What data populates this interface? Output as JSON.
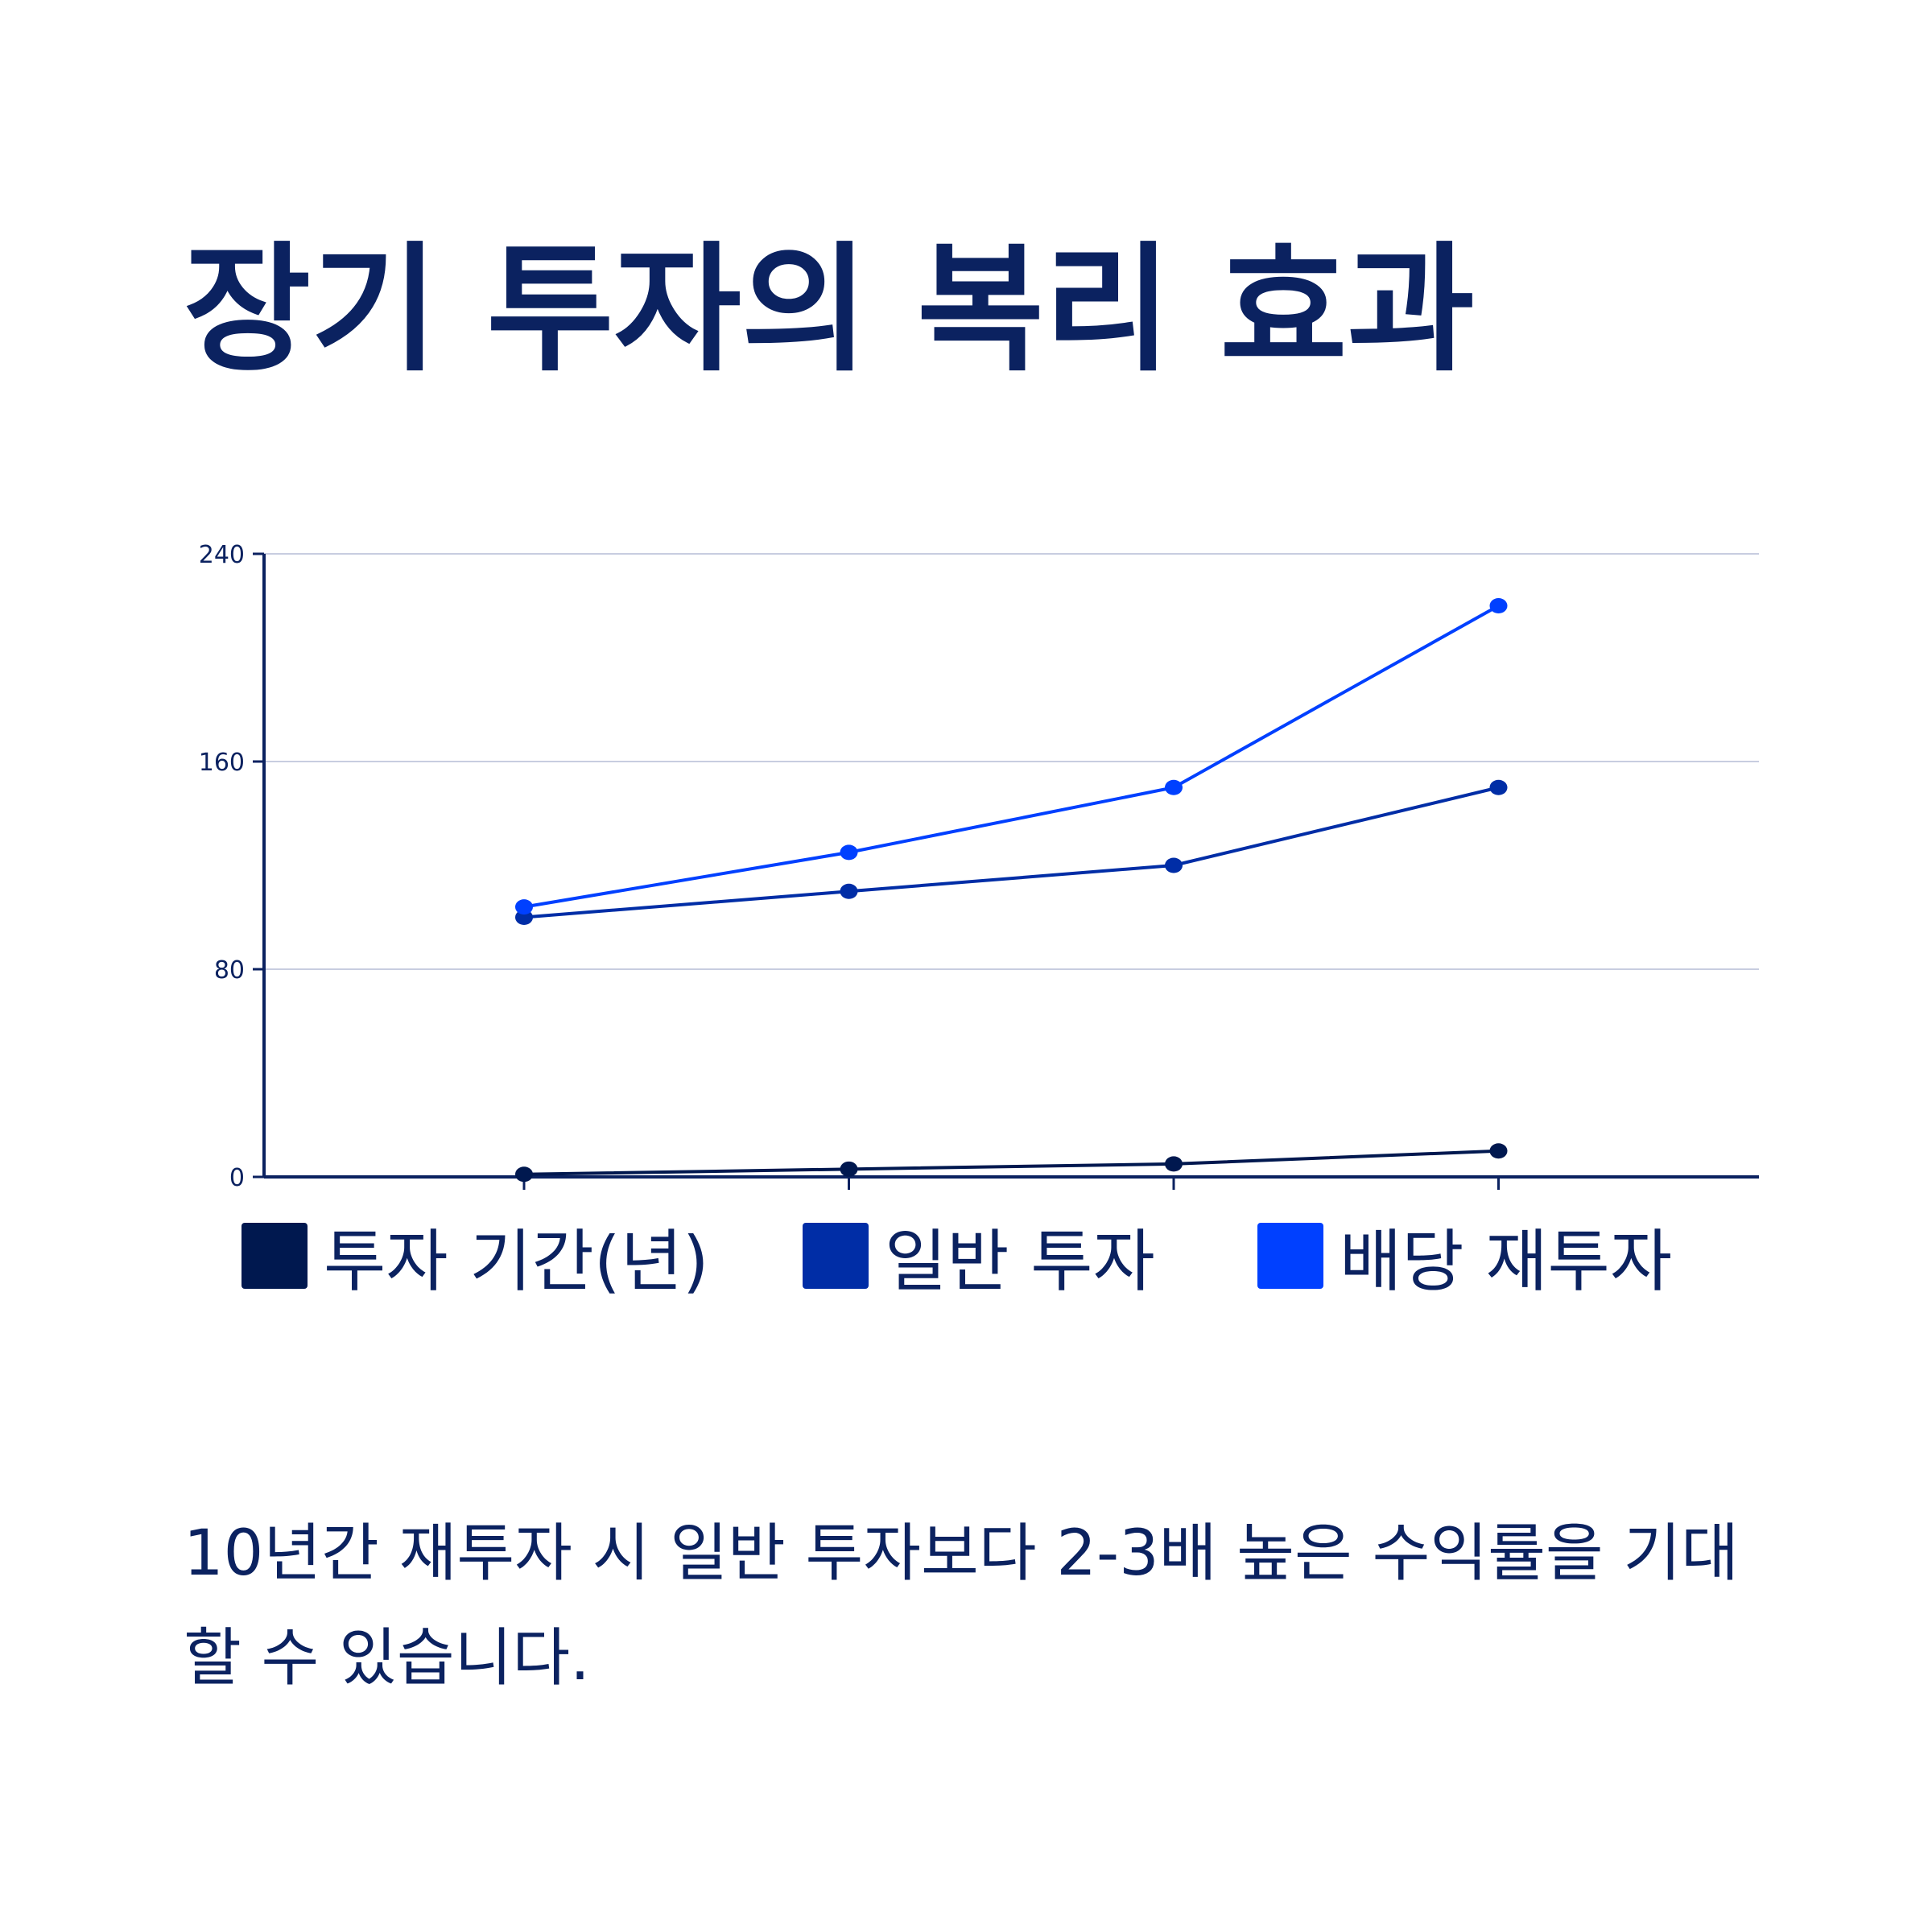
{
  "title": "장기 투자의 복리 효과",
  "footnote": "10년간 재투자 시 일반 투자보다 2-3배 높은 수익률을 기대할 수 있습니다.",
  "colors": {
    "text": "#0b2260",
    "axis": "#0b2260",
    "grid": "#c8cde0"
  },
  "chart_data": {
    "type": "line",
    "categories": [
      "",
      "",
      "",
      ""
    ],
    "ylim": [
      0,
      240
    ],
    "yticks": [
      0,
      80,
      160,
      240
    ],
    "grid": true,
    "legend_position": "bottom",
    "series": [
      {
        "name": "투자 기간(년)",
        "color": "#00184f",
        "values": [
          1,
          3,
          5,
          10
        ]
      },
      {
        "name": "일반 투자",
        "color": "#002da6",
        "values": [
          100,
          110,
          120,
          150
        ]
      },
      {
        "name": "배당 재투자",
        "color": "#0040ff",
        "values": [
          104,
          125,
          150,
          220
        ]
      }
    ]
  }
}
